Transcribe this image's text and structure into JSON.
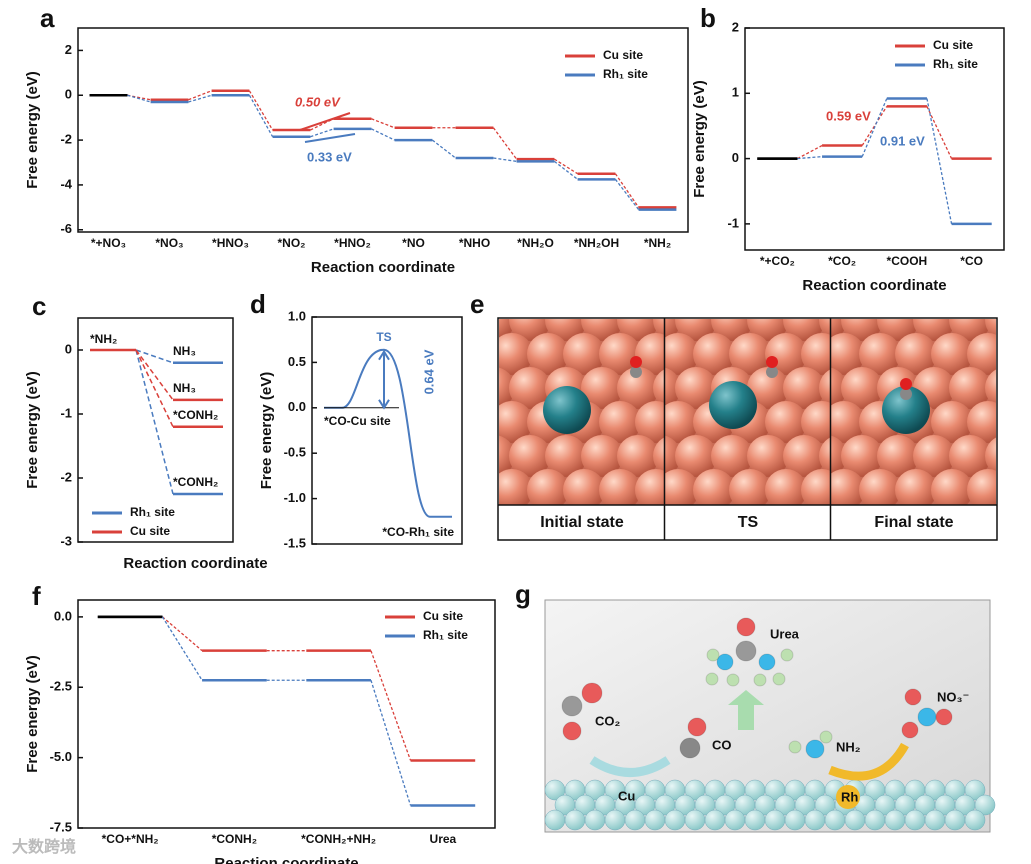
{
  "chart_data": [
    {
      "type": "energy",
      "panel": "a",
      "xlabel": "Reaction coordinate",
      "ylabel": "Free energy (eV)",
      "categories": [
        "*+NO₃",
        "*NO₃",
        "*HNO₃",
        "*NO₂",
        "*HNO₂",
        "*NO",
        "*NHO",
        "*NH₂O",
        "*NH₂OH",
        "*NH₂"
      ],
      "start_color": "#000000",
      "series": [
        {
          "name": "Cu site",
          "color": "#d9403a",
          "values": [
            0,
            -0.2,
            0.2,
            -1.55,
            -1.05,
            -1.45,
            -1.45,
            -2.85,
            -3.5,
            -5.0
          ]
        },
        {
          "name": "Rh₁ site",
          "color": "#4a7bbf",
          "values": [
            0,
            -0.3,
            0,
            -1.85,
            -1.5,
            -2.0,
            -2.8,
            -2.95,
            -3.75,
            -5.1
          ]
        }
      ],
      "annotations": [
        "0.50 eV",
        "0.33 eV"
      ],
      "ylim": [
        -6.1,
        3
      ],
      "yticks": [
        -6,
        -4,
        -2,
        0,
        2
      ]
    },
    {
      "type": "energy",
      "panel": "b",
      "xlabel": "Reaction coordinate",
      "ylabel": "Free energy (eV)",
      "categories": [
        "*+CO₂",
        "*CO₂",
        "*COOH",
        "*CO"
      ],
      "start_color": "#000000",
      "series": [
        {
          "name": "Cu site",
          "color": "#d9403a",
          "values": [
            0,
            0.2,
            0.8,
            0
          ]
        },
        {
          "name": "Rh₁ site",
          "color": "#4a7bbf",
          "values": [
            0,
            0.03,
            0.92,
            -1.0
          ]
        }
      ],
      "annotations": [
        "0.59 eV",
        "0.91 eV"
      ],
      "ylim": [
        -1.4,
        2
      ],
      "yticks": [
        -1,
        0,
        1,
        2
      ]
    },
    {
      "type": "branch",
      "panel": "c",
      "xlabel": "Reaction coordinate",
      "ylabel": "Free energy (eV)",
      "start": {
        "label": "*NH₂",
        "value": 0
      },
      "series": [
        {
          "name": "Rh₁ site",
          "color": "#4a7bbf",
          "values": [
            -0.2,
            -2.25
          ],
          "labels": [
            "NH₃",
            "*CONH₂"
          ]
        },
        {
          "name": "Cu site",
          "color": "#d9403a",
          "values": [
            -0.78,
            -1.2
          ],
          "labels": [
            "NH₃",
            "*CONH₂"
          ]
        }
      ],
      "ylim": [
        -3,
        0.5
      ],
      "yticks": [
        -3,
        -2,
        -1,
        0
      ]
    },
    {
      "type": "curve",
      "panel": "d",
      "ylabel": "Free energy (eV)",
      "categories": [
        "*CO-Cu site",
        "TS",
        "*CO-Rh₁ site"
      ],
      "values": [
        0,
        0.64,
        -1.2
      ],
      "color": "#4a7bbf",
      "annotations": [
        "0.64 eV"
      ],
      "ylim": [
        -1.5,
        1.0
      ],
      "yticks": [
        -1.5,
        {
          "value": -1.0,
          "label": "-1.0"
        },
        -0.5,
        {
          "value": 0.0,
          "label": "0.0"
        },
        0.5,
        {
          "value": 1.0,
          "label": "1.0"
        }
      ]
    },
    {
      "type": "energy",
      "panel": "f",
      "xlabel": "Reaction coordinate",
      "ylabel": "Free energy (eV)",
      "categories": [
        "*CO+*NH₂",
        "*CONH₂",
        "*CONH₂+NH₂",
        "Urea"
      ],
      "start_color": "#000000",
      "series": [
        {
          "name": "Cu site",
          "color": "#d9403a",
          "values": [
            0,
            -1.2,
            -1.2,
            -5.1
          ]
        },
        {
          "name": "Rh₁ site",
          "color": "#4a7bbf",
          "values": [
            0,
            -2.25,
            -2.25,
            -6.7
          ]
        }
      ],
      "ylim": [
        -7.5,
        0.6
      ],
      "yticks": [
        {
          "value": -7.5,
          "label": "-7.5"
        },
        {
          "value": -5.0,
          "label": "-5.0"
        },
        {
          "value": -2.5,
          "label": "-2.5"
        },
        {
          "value": 0.0,
          "label": "0.0"
        }
      ]
    }
  ],
  "panel_e": {
    "panel": "e",
    "labels": [
      "Initial state",
      "TS",
      "Final state"
    ]
  },
  "panel_g": {
    "panel": "g",
    "labels": {
      "urea": "Urea",
      "co2": "CO₂",
      "co": "CO",
      "no3": "NO₃⁻",
      "nh2": "NH₂",
      "cu": "Cu",
      "rh": "Rh"
    }
  },
  "watermark": "大数跨境"
}
